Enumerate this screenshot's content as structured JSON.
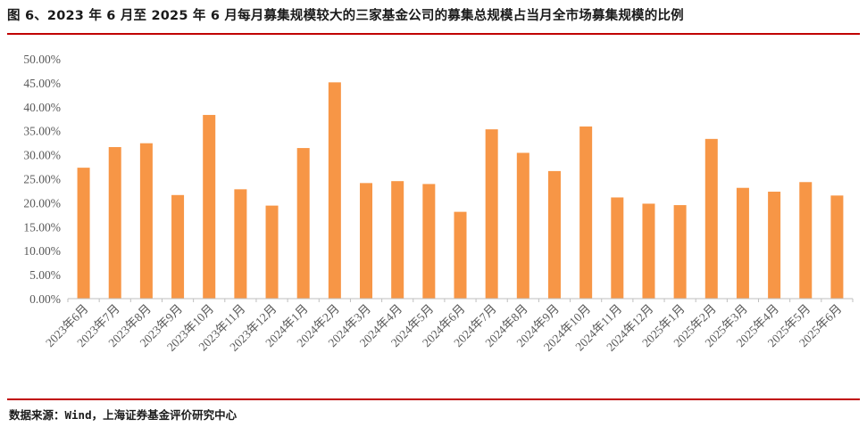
{
  "title": "图 6、2023 年 6 月至 2025 年 6 月每月募集规模较大的三家基金公司的募集总规模占当月全市场募集规模的比例",
  "source": "数据来源：Wind，上海证券基金评价研究中心",
  "colors": {
    "bar": "#F79646",
    "rule": "#C00000",
    "axis": "#BFBFBF",
    "tick_text": "#595959"
  },
  "chart_data": {
    "type": "bar",
    "title": "",
    "xlabel": "",
    "ylabel": "",
    "ylim": [
      0,
      50
    ],
    "yticks": [
      "0.00%",
      "5.00%",
      "10.00%",
      "15.00%",
      "20.00%",
      "25.00%",
      "30.00%",
      "35.00%",
      "40.00%",
      "45.00%",
      "50.00%"
    ],
    "grid": false,
    "categories": [
      "2023年6月",
      "2023年7月",
      "2023年8月",
      "2023年9月",
      "2023年10月",
      "2023年11月",
      "2023年12月",
      "2024年1月",
      "2024年2月",
      "2024年3月",
      "2024年4月",
      "2024年5月",
      "2024年6月",
      "2024年7月",
      "2024年8月",
      "2024年9月",
      "2024年10月",
      "2024年11月",
      "2024年12月",
      "2025年1月",
      "2025年2月",
      "2025年3月",
      "2025年4月",
      "2025年5月",
      "2025年6月"
    ],
    "values": [
      27.3,
      31.6,
      32.4,
      21.6,
      38.3,
      22.8,
      19.4,
      31.4,
      45.1,
      24.1,
      24.5,
      23.9,
      18.1,
      35.3,
      30.4,
      26.6,
      35.9,
      21.1,
      19.8,
      19.5,
      33.3,
      23.1,
      22.3,
      24.3,
      21.5
    ]
  }
}
